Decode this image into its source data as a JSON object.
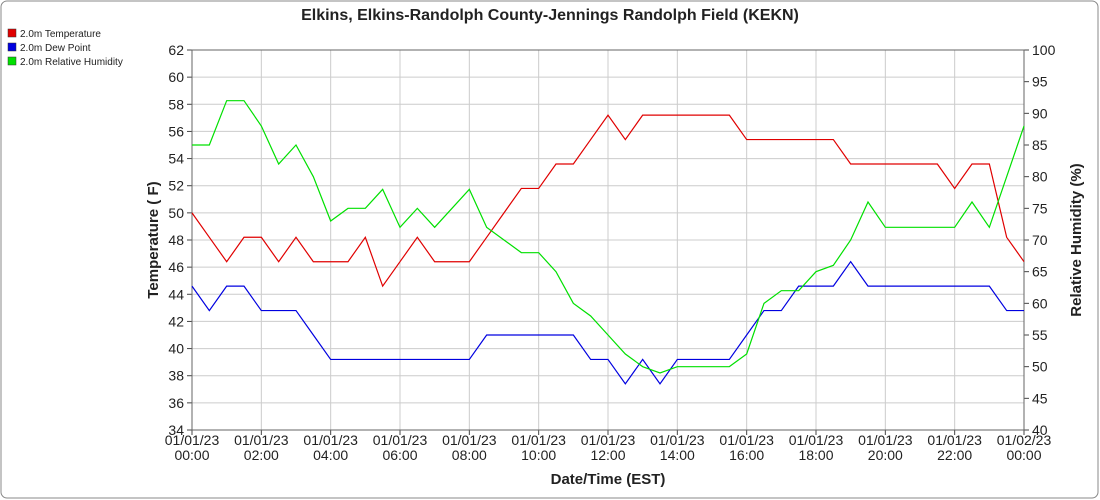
{
  "chart_data": {
    "type": "line",
    "title": "Elkins, Elkins-Randolph County-Jennings Randolph Field (KEKN)",
    "xlabel": "Date/Time (EST)",
    "ylabel": "Temperature ( F)",
    "y2label": "Relative Humidity (%)",
    "x": [
      0,
      0.5,
      1,
      1.5,
      2,
      2.5,
      3,
      3.5,
      4,
      4.5,
      5,
      5.5,
      6,
      6.5,
      7,
      7.5,
      8,
      8.5,
      9,
      9.5,
      10,
      10.5,
      11,
      11.5,
      12,
      12.5,
      13,
      13.5,
      14,
      14.5,
      15,
      15.5,
      16,
      16.5,
      17,
      17.5,
      18,
      18.5,
      19,
      19.5,
      20,
      20.5,
      21,
      21.5,
      22,
      22.5,
      23,
      23.5,
      24
    ],
    "xlim": [
      0,
      24
    ],
    "xticks": [
      {
        "value": 0,
        "label": "01/01/23\n00:00"
      },
      {
        "value": 2,
        "label": "01/01/23\n02:00"
      },
      {
        "value": 4,
        "label": "01/01/23\n04:00"
      },
      {
        "value": 6,
        "label": "01/01/23\n06:00"
      },
      {
        "value": 8,
        "label": "01/01/23\n08:00"
      },
      {
        "value": 10,
        "label": "01/01/23\n10:00"
      },
      {
        "value": 12,
        "label": "01/01/23\n12:00"
      },
      {
        "value": 14,
        "label": "01/01/23\n14:00"
      },
      {
        "value": 16,
        "label": "01/01/23\n16:00"
      },
      {
        "value": 18,
        "label": "01/01/23\n18:00"
      },
      {
        "value": 20,
        "label": "01/01/23\n20:00"
      },
      {
        "value": 22,
        "label": "01/01/23\n22:00"
      },
      {
        "value": 24,
        "label": "01/02/23\n00:00"
      }
    ],
    "ylim": [
      34,
      62
    ],
    "yticks": [
      34,
      36,
      38,
      40,
      42,
      44,
      46,
      48,
      50,
      52,
      54,
      56,
      58,
      60,
      62
    ],
    "y2lim": [
      40,
      100
    ],
    "y2ticks": [
      40,
      45,
      50,
      55,
      60,
      65,
      70,
      75,
      80,
      85,
      90,
      95,
      100
    ],
    "grid": true,
    "legend": "top-left",
    "series": [
      {
        "name": "2.0m Temperature",
        "color": "#e00000",
        "values": [
          50,
          48.2,
          46.4,
          48.2,
          48.2,
          46.4,
          48.2,
          46.4,
          46.4,
          46.4,
          48.2,
          44.6,
          46.4,
          48.2,
          46.4,
          46.4,
          46.4,
          48.2,
          50,
          51.8,
          51.8,
          53.6,
          53.6,
          55.4,
          57.2,
          55.4,
          57.2,
          57.2,
          57.2,
          57.2,
          57.2,
          57.2,
          55.4,
          55.4,
          55.4,
          55.4,
          55.4,
          55.4,
          53.6,
          53.6,
          53.6,
          53.6,
          53.6,
          53.6,
          51.8,
          53.6,
          53.6,
          48.2,
          46.4
        ]
      },
      {
        "name": "2.0m Dew Point",
        "color": "#0000e0",
        "values": [
          44.6,
          42.8,
          44.6,
          44.6,
          42.8,
          42.8,
          42.8,
          41,
          39.2,
          39.2,
          39.2,
          39.2,
          39.2,
          39.2,
          39.2,
          39.2,
          39.2,
          41,
          41,
          41,
          41,
          41,
          41,
          39.2,
          39.2,
          37.4,
          39.2,
          37.4,
          39.2,
          39.2,
          39.2,
          39.2,
          41,
          42.8,
          42.8,
          44.6,
          44.6,
          44.6,
          46.4,
          44.6,
          44.6,
          44.6,
          44.6,
          44.6,
          44.6,
          44.6,
          44.6,
          42.8,
          42.8
        ]
      },
      {
        "name": "2.0m Relative Humidity",
        "color": "#00e000",
        "axis": "y2",
        "values": [
          85,
          85,
          92,
          92,
          88,
          82,
          85,
          80,
          73,
          75,
          75,
          78,
          72,
          75,
          72,
          75,
          78,
          72,
          70,
          68,
          68,
          65,
          60,
          58,
          55,
          52,
          50,
          49,
          50,
          50,
          50,
          50,
          52,
          60,
          62,
          62,
          65,
          66,
          70,
          76,
          72,
          72,
          72,
          72,
          72,
          76,
          72,
          80,
          88
        ]
      }
    ]
  }
}
